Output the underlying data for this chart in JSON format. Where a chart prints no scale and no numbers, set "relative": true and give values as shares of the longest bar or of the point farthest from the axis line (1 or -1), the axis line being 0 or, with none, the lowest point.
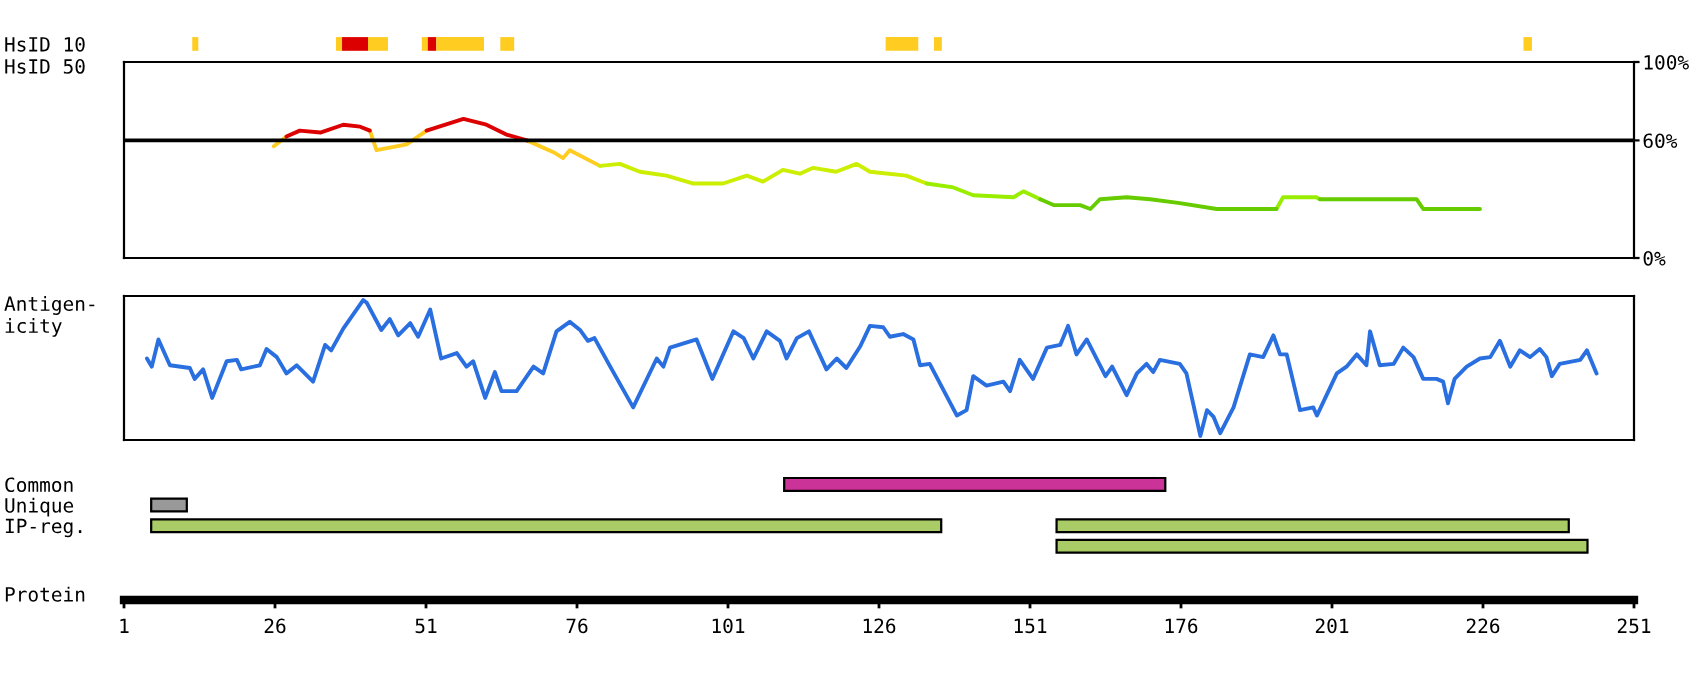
{
  "chart_data": [
    {
      "type": "bar",
      "orientation": "horizontal",
      "categories": [
        "HsID 10",
        "HsID 50"
      ],
      "xlim": [
        1,
        251
      ],
      "tick_labels": "y",
      "series": [
        {
          "color": "#ffcc22",
          "values": [
            1.0,
            null
          ],
          "base": [
            12.3,
            null
          ]
        },
        {
          "color": "#ffcc22",
          "values": [
            1.0,
            null
          ],
          "base": [
            36.1,
            null
          ]
        },
        {
          "color": "#dd0000",
          "values": [
            4.3,
            null
          ],
          "base": [
            37.1,
            null
          ]
        },
        {
          "color": "#ffcc22",
          "values": [
            3.3,
            null
          ],
          "base": [
            41.4,
            null
          ]
        },
        {
          "color": "#ffcc22",
          "values": [
            1.0,
            null
          ],
          "base": [
            50.3,
            null
          ]
        },
        {
          "color": "#dd0000",
          "values": [
            1.4,
            null
          ],
          "base": [
            51.3,
            null
          ]
        },
        {
          "color": "#ffcc22",
          "values": [
            7.9,
            null
          ],
          "base": [
            52.7,
            null
          ]
        },
        {
          "color": "#ffcc22",
          "values": [
            2.3,
            null
          ],
          "base": [
            63.3,
            null
          ]
        },
        {
          "color": "#ffcc22",
          "values": [
            5.4,
            null
          ],
          "base": [
            127.1,
            null
          ]
        },
        {
          "color": "#ffcc22",
          "values": [
            1.3,
            null
          ],
          "base": [
            135.1,
            null
          ]
        },
        {
          "color": "#ffcc22",
          "values": [
            1.4,
            null
          ],
          "base": [
            232.7,
            null
          ]
        }
      ]
    },
    {
      "type": "line",
      "xlim": [
        1,
        251
      ],
      "ylim": [
        0,
        100
      ],
      "tick_labels": "y",
      "yticks": [
        {
          "value": 0,
          "label": "0%"
        },
        {
          "value": 60,
          "label": "60%"
        },
        {
          "value": 100,
          "label": "100%"
        }
      ],
      "ref_lines": [
        {
          "axis": "y",
          "value": 60,
          "color": "#000000"
        }
      ],
      "x": [
        25.8,
        27.9,
        30.1,
        33.5,
        37.3,
        40.1,
        41.7,
        42.8,
        47.8,
        51.1,
        57.2,
        61,
        64.3,
        67.7,
        72.1,
        73.7,
        74.8,
        79.8,
        83.1,
        86.4,
        90.8,
        95.3,
        100.2,
        104.1,
        106.8,
        110.1,
        112.9,
        115.1,
        118.9,
        122.3,
        124.5,
        130.5,
        133.9,
        138.3,
        141.6,
        148.3,
        149.9,
        152.7,
        154.9,
        159.3,
        161,
        162.6,
        167,
        170.9,
        175.8,
        181.9,
        191.8,
        192.9,
        198.4,
        199,
        215,
        216.1,
        225.5
      ],
      "series": [
        {
          "color": "#ffcc22",
          "values": [
            57,
            62,
            null,
            null,
            null,
            null,
            65,
            55,
            58,
            65,
            null,
            null,
            null,
            60,
            54,
            51,
            55,
            47,
            null,
            null,
            null,
            null,
            null,
            null,
            null,
            null,
            null,
            null,
            null,
            null,
            null,
            null,
            null,
            null,
            null,
            null,
            null,
            null,
            null,
            null,
            null,
            null,
            null,
            null,
            null,
            null,
            null,
            null,
            null,
            null,
            null,
            null,
            null
          ]
        },
        {
          "color": "#dd0000",
          "values": [
            null,
            62,
            65,
            64,
            68,
            67,
            65,
            null,
            null,
            65,
            71,
            68,
            63,
            60,
            null,
            null,
            null,
            null,
            null,
            null,
            null,
            null,
            null,
            null,
            null,
            null,
            null,
            null,
            null,
            null,
            null,
            null,
            null,
            null,
            null,
            null,
            null,
            null,
            null,
            null,
            null,
            null,
            null,
            null,
            null,
            null,
            null,
            null,
            null,
            null,
            null,
            null,
            null
          ]
        },
        {
          "color": "#ccee00",
          "values": [
            null,
            null,
            null,
            null,
            null,
            null,
            null,
            null,
            null,
            null,
            null,
            null,
            null,
            null,
            null,
            null,
            null,
            47,
            48,
            44,
            42,
            38,
            38,
            42,
            39,
            45,
            43,
            46,
            44,
            48,
            44,
            42,
            38,
            null,
            null,
            null,
            null,
            null,
            null,
            null,
            null,
            null,
            null,
            null,
            null,
            null,
            null,
            null,
            null,
            null,
            null,
            null,
            null
          ]
        },
        {
          "color": "#99ee00",
          "values": [
            null,
            null,
            null,
            null,
            null,
            null,
            null,
            null,
            null,
            null,
            null,
            null,
            null,
            null,
            null,
            null,
            null,
            null,
            null,
            null,
            null,
            null,
            null,
            null,
            null,
            null,
            null,
            null,
            null,
            null,
            null,
            null,
            38,
            36,
            32,
            31,
            34,
            30,
            null,
            null,
            null,
            null,
            null,
            null,
            null,
            null,
            25,
            31,
            31,
            30,
            null,
            null,
            null
          ]
        },
        {
          "color": "#66cc00",
          "values": [
            null,
            null,
            null,
            null,
            null,
            null,
            null,
            null,
            null,
            null,
            null,
            null,
            null,
            null,
            null,
            null,
            null,
            null,
            null,
            null,
            null,
            null,
            null,
            null,
            null,
            null,
            null,
            null,
            null,
            null,
            null,
            null,
            null,
            null,
            null,
            null,
            null,
            30,
            27,
            27,
            25,
            30,
            31,
            30,
            28,
            25,
            25,
            null,
            null,
            30,
            30,
            25,
            25
          ]
        }
      ]
    },
    {
      "type": "line",
      "relative": true,
      "xlim": [
        1,
        251
      ],
      "tick_labels": false,
      "ylabel": "Antigen-\nicity",
      "series": [
        {
          "color": "#2a6fe0",
          "x": [
            4.8,
            5.6,
            6.7,
            8.6,
            11.9,
            12.7,
            14.1,
            15.6,
            18.0,
            19.7,
            20.4,
            23.5,
            24.6,
            26.3,
            27.9,
            29.6,
            32.3,
            34.3,
            35.3,
            37.3,
            40.6,
            41.2,
            43.6,
            45.0,
            46.4,
            48.4,
            49.7,
            51.7,
            53.5,
            56.1,
            57.7,
            58.8,
            60.8,
            62.4,
            63.5,
            66.0,
            68.8,
            70.4,
            72.6,
            74.8,
            76.5,
            77.8,
            78.9,
            81.5,
            85.3,
            89.2,
            90.3,
            91.4,
            95.8,
            98.4,
            101.9,
            103.6,
            105.2,
            107.4,
            109.6,
            110.7,
            112.4,
            114.4,
            117.3,
            119.0,
            120.6,
            122.9,
            124.5,
            126.7,
            127.8,
            130.0,
            131.7,
            132.8,
            134.4,
            138.9,
            140.5,
            141.6,
            143.8,
            146.6,
            147.7,
            149.3,
            151.5,
            153.8,
            156.0,
            157.3,
            158.7,
            160.4,
            163.5,
            164.6,
            167.0,
            168.7,
            170.3,
            171.4,
            172.5,
            175.8,
            176.9,
            179.2,
            180.3,
            181.4,
            182.5,
            184.7,
            187.4,
            189.6,
            191.3,
            192.4,
            193.5,
            195.7,
            197.9,
            198.5,
            201.8,
            203.4,
            205.1,
            206.7,
            207.3,
            208.9,
            211.2,
            212.8,
            214.5,
            216.1,
            218.3,
            219.4,
            220.2,
            221.3,
            223.3,
            225.5,
            227.2,
            228.8,
            230.5,
            232.1,
            233.8,
            235.4,
            236.5,
            237.4,
            238.7,
            242.1,
            243.2,
            244.8
          ],
          "values": [
            0.57,
            0.51,
            0.71,
            0.52,
            0.5,
            0.42,
            0.49,
            0.28,
            0.55,
            0.56,
            0.49,
            0.52,
            0.64,
            0.58,
            0.46,
            0.52,
            0.4,
            0.67,
            0.63,
            0.79,
            1.0,
            0.98,
            0.78,
            0.86,
            0.74,
            0.83,
            0.73,
            0.93,
            0.57,
            0.61,
            0.51,
            0.55,
            0.28,
            0.47,
            0.33,
            0.33,
            0.51,
            0.46,
            0.77,
            0.84,
            0.78,
            0.7,
            0.72,
            0.51,
            0.21,
            0.57,
            0.51,
            0.65,
            0.71,
            0.42,
            0.77,
            0.72,
            0.57,
            0.77,
            0.7,
            0.57,
            0.72,
            0.77,
            0.49,
            0.57,
            0.5,
            0.66,
            0.81,
            0.8,
            0.73,
            0.75,
            0.71,
            0.52,
            0.53,
            0.15,
            0.19,
            0.44,
            0.37,
            0.4,
            0.33,
            0.56,
            0.42,
            0.65,
            0.67,
            0.81,
            0.6,
            0.71,
            0.44,
            0.51,
            0.3,
            0.46,
            0.53,
            0.47,
            0.56,
            0.53,
            0.46,
            0.0,
            0.19,
            0.14,
            0.02,
            0.21,
            0.6,
            0.58,
            0.74,
            0.6,
            0.6,
            0.19,
            0.21,
            0.15,
            0.46,
            0.51,
            0.6,
            0.52,
            0.77,
            0.52,
            0.53,
            0.65,
            0.58,
            0.42,
            0.42,
            0.4,
            0.24,
            0.42,
            0.51,
            0.57,
            0.58,
            0.7,
            0.51,
            0.63,
            0.58,
            0.64,
            0.58,
            0.44,
            0.53,
            0.56,
            0.63,
            0.46
          ]
        }
      ]
    },
    {
      "type": "bar",
      "orientation": "horizontal",
      "categories": [
        "Common",
        "Unique",
        "IP-reg.",
        null
      ],
      "xlim": [
        1,
        251
      ],
      "xlabel": "Protein",
      "xticks": [
        1,
        26,
        51,
        76,
        101,
        126,
        151,
        176,
        201,
        226,
        251
      ],
      "series": [
        {
          "values": [
            63.1,
            5.9,
            130.8,
            87.9
          ],
          "base": [
            110.3,
            5.5,
            5.5,
            155.4
          ],
          "colors": [
            "#cc3399",
            "#999999",
            "#aacc66",
            "#aacc66"
          ]
        },
        {
          "color": "#aacc66",
          "values": [
            null,
            null,
            84.8,
            null
          ],
          "base": [
            null,
            null,
            155.4,
            null
          ]
        }
      ]
    }
  ]
}
